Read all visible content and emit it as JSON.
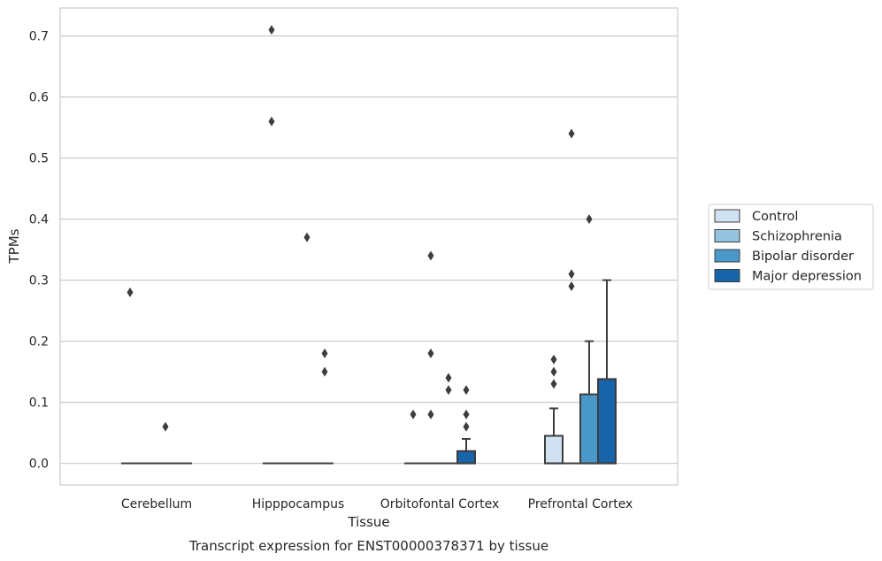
{
  "chart_data": {
    "type": "box",
    "caption": "Transcript expression for ENST00000378371 by tissue",
    "xlabel": "Tissue",
    "ylabel": "TPMs",
    "ylim": [
      -0.035,
      0.748
    ],
    "yticks": [
      0.0,
      0.1,
      0.2,
      0.3,
      0.4,
      0.5,
      0.6,
      0.7
    ],
    "ytick_labels": [
      "0.0",
      "0.1",
      "0.2",
      "0.3",
      "0.4",
      "0.5",
      "0.6",
      "0.7"
    ],
    "grid": true,
    "legend_position": "right",
    "categories": [
      "Cerebellum",
      "Hipppocampus",
      "Orbitofontal Cortex",
      "Prefrontal Cortex"
    ],
    "series": [
      {
        "name": "Control",
        "color": "#d0e1f2",
        "boxes": [
          {
            "q1": 0,
            "median": 0,
            "q3": 0,
            "whisker_low": 0,
            "whisker_high": 0,
            "outliers": [
              0.28
            ]
          },
          {
            "q1": 0,
            "median": 0,
            "q3": 0,
            "whisker_low": 0,
            "whisker_high": 0,
            "outliers": [
              0.71,
              0.56
            ]
          },
          {
            "q1": 0,
            "median": 0,
            "q3": 0,
            "whisker_low": 0,
            "whisker_high": 0,
            "outliers": [
              0.08
            ]
          },
          {
            "q1": 0,
            "median": 0,
            "q3": 0.045,
            "whisker_low": 0,
            "whisker_high": 0.09,
            "outliers": [
              0.17,
              0.15,
              0.13
            ]
          }
        ]
      },
      {
        "name": "Schizophrenia",
        "color": "#94c4df",
        "boxes": [
          {
            "q1": 0,
            "median": 0,
            "q3": 0,
            "whisker_low": 0,
            "whisker_high": 0,
            "outliers": []
          },
          {
            "q1": 0,
            "median": 0,
            "q3": 0,
            "whisker_low": 0,
            "whisker_high": 0,
            "outliers": []
          },
          {
            "q1": 0,
            "median": 0,
            "q3": 0,
            "whisker_low": 0,
            "whisker_high": 0,
            "outliers": [
              0.34,
              0.18,
              0.08
            ]
          },
          {
            "q1": 0,
            "median": 0,
            "q3": 0,
            "whisker_low": 0,
            "whisker_high": 0,
            "outliers": [
              0.54,
              0.31,
              0.29
            ]
          }
        ]
      },
      {
        "name": "Bipolar disorder",
        "color": "#4a98c9",
        "boxes": [
          {
            "q1": 0,
            "median": 0,
            "q3": 0,
            "whisker_low": 0,
            "whisker_high": 0,
            "outliers": [
              0.06
            ]
          },
          {
            "q1": 0,
            "median": 0,
            "q3": 0,
            "whisker_low": 0,
            "whisker_high": 0,
            "outliers": [
              0.37
            ]
          },
          {
            "q1": 0,
            "median": 0,
            "q3": 0,
            "whisker_low": 0,
            "whisker_high": 0,
            "outliers": [
              0.14,
              0.12
            ]
          },
          {
            "q1": 0,
            "median": 0,
            "q3": 0.113,
            "whisker_low": 0,
            "whisker_high": 0.2,
            "outliers": [
              0.4
            ]
          }
        ]
      },
      {
        "name": "Major depression",
        "color": "#1764ab",
        "boxes": [
          {
            "q1": 0,
            "median": 0,
            "q3": 0,
            "whisker_low": 0,
            "whisker_high": 0,
            "outliers": []
          },
          {
            "q1": 0,
            "median": 0,
            "q3": 0,
            "whisker_low": 0,
            "whisker_high": 0,
            "outliers": [
              0.18,
              0.15
            ]
          },
          {
            "q1": 0,
            "median": 0,
            "q3": 0.02,
            "whisker_low": 0,
            "whisker_high": 0.04,
            "outliers": [
              0.12,
              0.08,
              0.06
            ]
          },
          {
            "q1": 0,
            "median": 0,
            "q3": 0.138,
            "whisker_low": 0,
            "whisker_high": 0.3,
            "outliers": []
          }
        ]
      }
    ]
  }
}
